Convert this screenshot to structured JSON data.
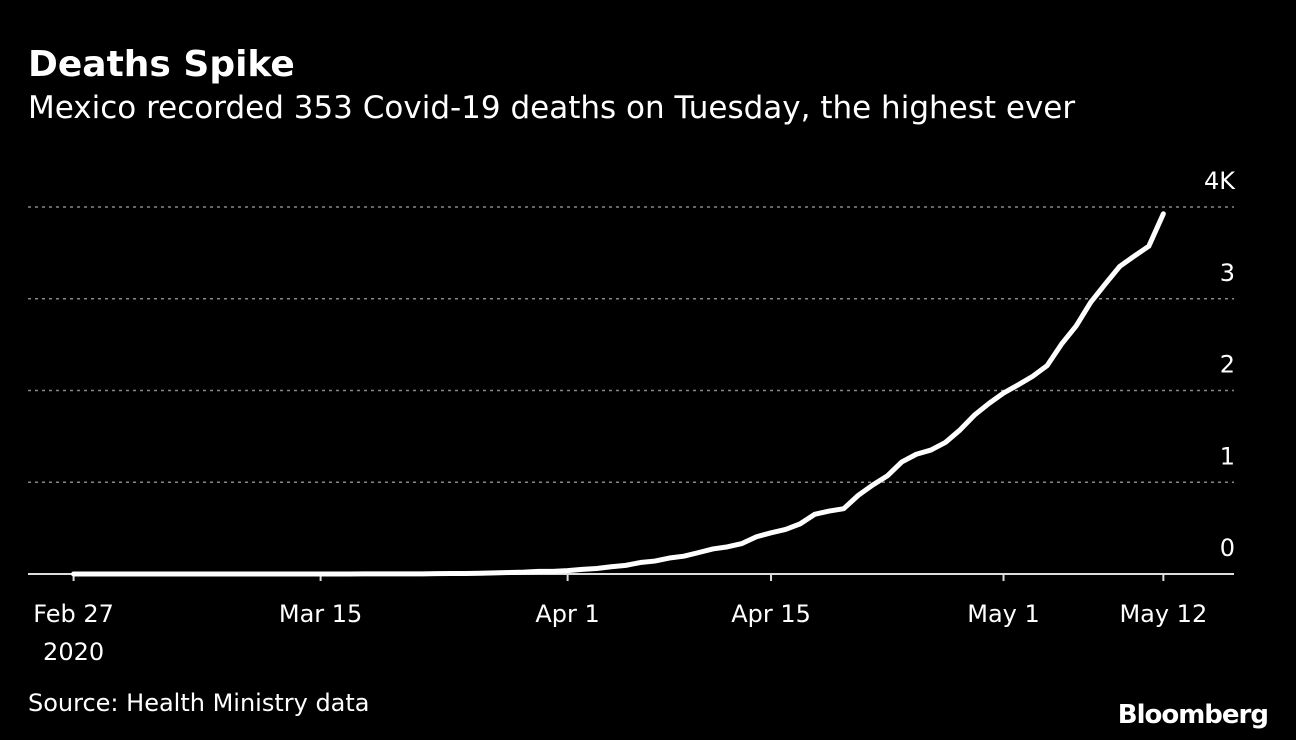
{
  "chart_data": {
    "type": "line",
    "title": "Deaths Spike",
    "subtitle": "Mexico recorded 353 Covid-19 deaths on Tuesday, the highest ever",
    "source": "Source: Health Ministry data",
    "brand": "Bloomberg",
    "x": [
      "2020-02-27",
      "2020-02-28",
      "2020-02-29",
      "2020-03-01",
      "2020-03-02",
      "2020-03-03",
      "2020-03-04",
      "2020-03-05",
      "2020-03-06",
      "2020-03-07",
      "2020-03-08",
      "2020-03-09",
      "2020-03-10",
      "2020-03-11",
      "2020-03-12",
      "2020-03-13",
      "2020-03-14",
      "2020-03-15",
      "2020-03-16",
      "2020-03-17",
      "2020-03-18",
      "2020-03-19",
      "2020-03-20",
      "2020-03-21",
      "2020-03-22",
      "2020-03-23",
      "2020-03-24",
      "2020-03-25",
      "2020-03-26",
      "2020-03-27",
      "2020-03-28",
      "2020-03-29",
      "2020-03-30",
      "2020-03-31",
      "2020-04-01",
      "2020-04-02",
      "2020-04-03",
      "2020-04-04",
      "2020-04-05",
      "2020-04-06",
      "2020-04-07",
      "2020-04-08",
      "2020-04-09",
      "2020-04-10",
      "2020-04-11",
      "2020-04-12",
      "2020-04-13",
      "2020-04-14",
      "2020-04-15",
      "2020-04-16",
      "2020-04-17",
      "2020-04-18",
      "2020-04-19",
      "2020-04-20",
      "2020-04-21",
      "2020-04-22",
      "2020-04-23",
      "2020-04-24",
      "2020-04-25",
      "2020-04-26",
      "2020-04-27",
      "2020-04-28",
      "2020-04-29",
      "2020-04-30",
      "2020-05-01",
      "2020-05-02",
      "2020-05-03",
      "2020-05-04",
      "2020-05-05",
      "2020-05-06",
      "2020-05-07",
      "2020-05-08",
      "2020-05-09",
      "2020-05-10",
      "2020-05-11",
      "2020-05-12"
    ],
    "series": [
      {
        "name": "Deaths",
        "color": "#ffffff",
        "values": [
          0,
          0,
          0,
          0,
          0,
          0,
          0,
          0,
          0,
          0,
          0,
          0,
          0,
          0,
          0,
          0,
          0,
          0,
          0,
          0,
          1,
          2,
          2,
          2,
          2,
          4,
          5,
          6,
          8,
          12,
          16,
          20,
          28,
          29,
          37,
          50,
          60,
          79,
          94,
          125,
          141,
          174,
          194,
          233,
          273,
          296,
          332,
          406,
          449,
          486,
          546,
          650,
          686,
          712,
          857,
          970,
          1069,
          1221,
          1305,
          1351,
          1434,
          1569,
          1732,
          1859,
          1972,
          2061,
          2154,
          2271,
          2507,
          2704,
          2961,
          3160,
          3353,
          3465,
          3573,
          3926
        ]
      }
    ],
    "xlim": [
      "2020-02-24",
      "2020-05-17"
    ],
    "xticks": [
      {
        "value": "2020-02-27",
        "label": "Feb 27"
      },
      {
        "value": "2020-03-15",
        "label": "Mar 15"
      },
      {
        "value": "2020-04-01",
        "label": "Apr 1"
      },
      {
        "value": "2020-04-15",
        "label": "Apr 15"
      },
      {
        "value": "2020-05-01",
        "label": "May 1"
      },
      {
        "value": "2020-05-12",
        "label": "May 12"
      }
    ],
    "x_year_label": "2020",
    "ylim": [
      0,
      4000
    ],
    "yticks": [
      0,
      {
        "value": 1000,
        "label": "1"
      },
      {
        "value": 2000,
        "label": "2"
      },
      {
        "value": 3000,
        "label": "3"
      },
      {
        "value": 4000,
        "label": "4K"
      }
    ],
    "grid": true
  }
}
